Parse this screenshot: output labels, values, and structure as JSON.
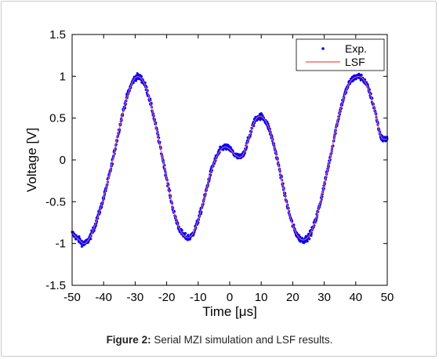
{
  "caption": {
    "label": "Figure 2:",
    "text": " Serial MZI simulation and LSF results."
  },
  "colors": {
    "experimental": "#0000ff",
    "fit": "#ff6a6a",
    "axis": "#000000"
  },
  "chart_data": {
    "type": "line",
    "title": "",
    "xlabel": "Time [μs]",
    "ylabel": "Voltage [V]",
    "xlim": [
      -50,
      50
    ],
    "ylim": [
      -1.5,
      1.5
    ],
    "xticks": [
      -50,
      -40,
      -30,
      -20,
      -10,
      0,
      10,
      20,
      30,
      40,
      50
    ],
    "xtick_labels": [
      "-50",
      "-40",
      "-30",
      "-20",
      "-10",
      "0",
      "10",
      "20",
      "30",
      "40",
      "50"
    ],
    "yticks": [
      1.5,
      1,
      0.5,
      0,
      -0.5,
      -1,
      -1.5
    ],
    "ytick_labels": [
      "1.5",
      "1",
      "0.5",
      "0",
      "-0.5",
      "-1",
      "-1.5"
    ],
    "grid": false,
    "legend_position": "top-right",
    "series": [
      {
        "name": "Exp.",
        "style": "dots",
        "x": [
          -50,
          -48,
          -46,
          -44,
          -42,
          -40,
          -38,
          -36,
          -34,
          -32,
          -30,
          -28,
          -26,
          -24,
          -22,
          -20,
          -18,
          -16,
          -14,
          -12,
          -10,
          -8,
          -6,
          -4,
          -2,
          0,
          2,
          4,
          6,
          8,
          10,
          12,
          14,
          16,
          18,
          20,
          22,
          24,
          26,
          28,
          30,
          32,
          34,
          36,
          38,
          40,
          42,
          44,
          46,
          48,
          50
        ],
        "y": [
          -0.88,
          -0.95,
          -1.0,
          -0.9,
          -0.7,
          -0.45,
          -0.15,
          0.2,
          0.55,
          0.82,
          0.98,
          0.97,
          0.8,
          0.5,
          0.15,
          -0.22,
          -0.58,
          -0.82,
          -0.92,
          -0.9,
          -0.72,
          -0.45,
          -0.15,
          0.05,
          0.15,
          0.13,
          0.05,
          0.05,
          0.25,
          0.47,
          0.52,
          0.42,
          0.18,
          -0.15,
          -0.5,
          -0.78,
          -0.93,
          -0.95,
          -0.85,
          -0.62,
          -0.3,
          0.05,
          0.42,
          0.72,
          0.92,
          0.99,
          0.98,
          0.85,
          0.6,
          0.28,
          0.25
        ]
      },
      {
        "name": "LSF",
        "style": "line",
        "x": [
          -50,
          -48,
          -46,
          -44,
          -42,
          -40,
          -38,
          -36,
          -34,
          -32,
          -30,
          -28,
          -26,
          -24,
          -22,
          -20,
          -18,
          -16,
          -14,
          -12,
          -10,
          -8,
          -6,
          -4,
          -2,
          0,
          2,
          4,
          6,
          8,
          10,
          12,
          14,
          16,
          18,
          20,
          22,
          24,
          26,
          28,
          30,
          32,
          34,
          36,
          38,
          40,
          42,
          44,
          46,
          48,
          50
        ],
        "y": [
          -0.88,
          -0.95,
          -1.0,
          -0.9,
          -0.7,
          -0.45,
          -0.15,
          0.2,
          0.55,
          0.82,
          0.98,
          0.97,
          0.8,
          0.5,
          0.15,
          -0.22,
          -0.58,
          -0.82,
          -0.92,
          -0.9,
          -0.72,
          -0.45,
          -0.15,
          0.05,
          0.15,
          0.13,
          0.05,
          0.05,
          0.25,
          0.47,
          0.52,
          0.42,
          0.18,
          -0.15,
          -0.5,
          -0.78,
          -0.93,
          -0.95,
          -0.85,
          -0.62,
          -0.3,
          0.05,
          0.42,
          0.72,
          0.92,
          0.99,
          0.98,
          0.85,
          0.6,
          0.28,
          0.25
        ]
      }
    ]
  }
}
